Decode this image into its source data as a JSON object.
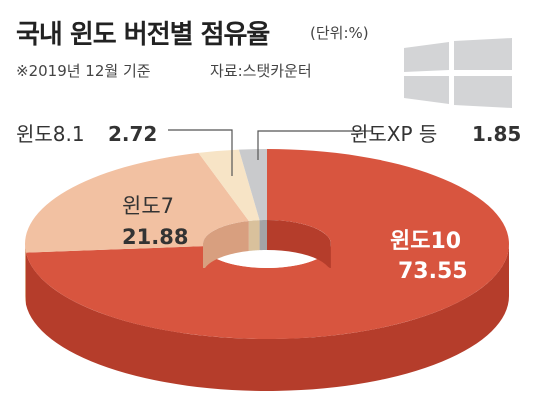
{
  "header": {
    "title": "국내 윈도 버전별 점유율",
    "unit": "(단위:%)",
    "note": "※2019년 12월 기준",
    "source": "자료:스탯카운터"
  },
  "chart_data": {
    "type": "pie",
    "style": "3d-donut",
    "categories": [
      "윈도10",
      "윈도7",
      "윈도8.1",
      "윈도XP 등"
    ],
    "values": [
      73.55,
      21.88,
      2.72,
      1.85
    ],
    "value_labels": [
      "73.55",
      "21.88",
      "2.72",
      "1.85"
    ],
    "colors": {
      "윈도10": "#d8553f",
      "윈도7": "#f2c1a2",
      "윈도8.1": "#f7e4c6",
      "윈도XP 등": "#c9cacc"
    },
    "side_colors": {
      "윈도10": "#b53d2b",
      "윈도7": "#d89f7f",
      "윈도8.1": "#d9c19c",
      "윈도XP 등": "#a3a4a6"
    }
  },
  "icons": {
    "logo": "windows-logo-icon"
  }
}
